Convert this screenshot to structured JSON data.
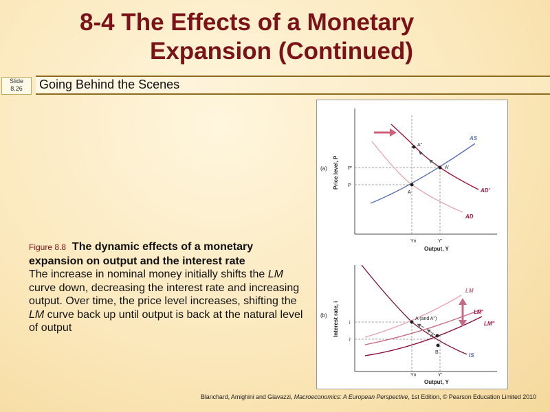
{
  "slide": {
    "title_line1": "8-4  The Effects of a Monetary",
    "title_line2": "Expansion (Continued)",
    "slide_number": "Slide\n8.26",
    "subtitle": "Going Behind the Scenes"
  },
  "caption": {
    "figure_label": "Figure 8.8",
    "figure_title": "The dynamic effects of a monetary expansion on output and the interest rate",
    "body_part1": "The increase in nominal money initially shifts the ",
    "body_lm1": "LM",
    "body_part2": " curve down, decreasing the interest rate and increasing output. Over time, the price level increases, shifting the ",
    "body_lm2": "LM",
    "body_part3": " curve back up until output is back at the natural level of output"
  },
  "figure": {
    "panel_a": {
      "panel_label": "(a)",
      "y_axis_label": "Price level, P",
      "x_axis_label": "Output, Y",
      "x_ticks": [
        "Yn",
        "Y'"
      ],
      "y_ticks": [
        "P'",
        "P"
      ],
      "curves": [
        "AS",
        "AD'",
        "AD"
      ],
      "points": [
        "A\"",
        "A'",
        "A"
      ]
    },
    "panel_b": {
      "panel_label": "(b)",
      "y_axis_label": "Interest rate, i",
      "x_axis_label": "Output, Y",
      "x_ticks": [
        "Yn",
        "Y'"
      ],
      "y_ticks": [
        "i",
        "i'"
      ],
      "curves": [
        "LM",
        "LM'",
        "LM\"",
        "IS"
      ],
      "points": [
        "A (and A\")",
        "A'",
        "B"
      ]
    }
  },
  "credit": {
    "authors": "Blanchard, Amighini and Giavazzi, ",
    "book": "Macroeconomics: A European Perspective",
    "edition": ", 1st Edition, © Pearson Education Limited 2010"
  },
  "colors": {
    "title": "#7a1218",
    "as_curve": "#5b73b0",
    "ad_curve": "#e8a8b4",
    "ad_prime_curve": "#a0103a",
    "lm_curve": "#e8a8b4",
    "lm_prime_curve": "#8a1040",
    "lm_double_prime_curve": "#c86a84",
    "is_curve": "#5e6aa8"
  }
}
